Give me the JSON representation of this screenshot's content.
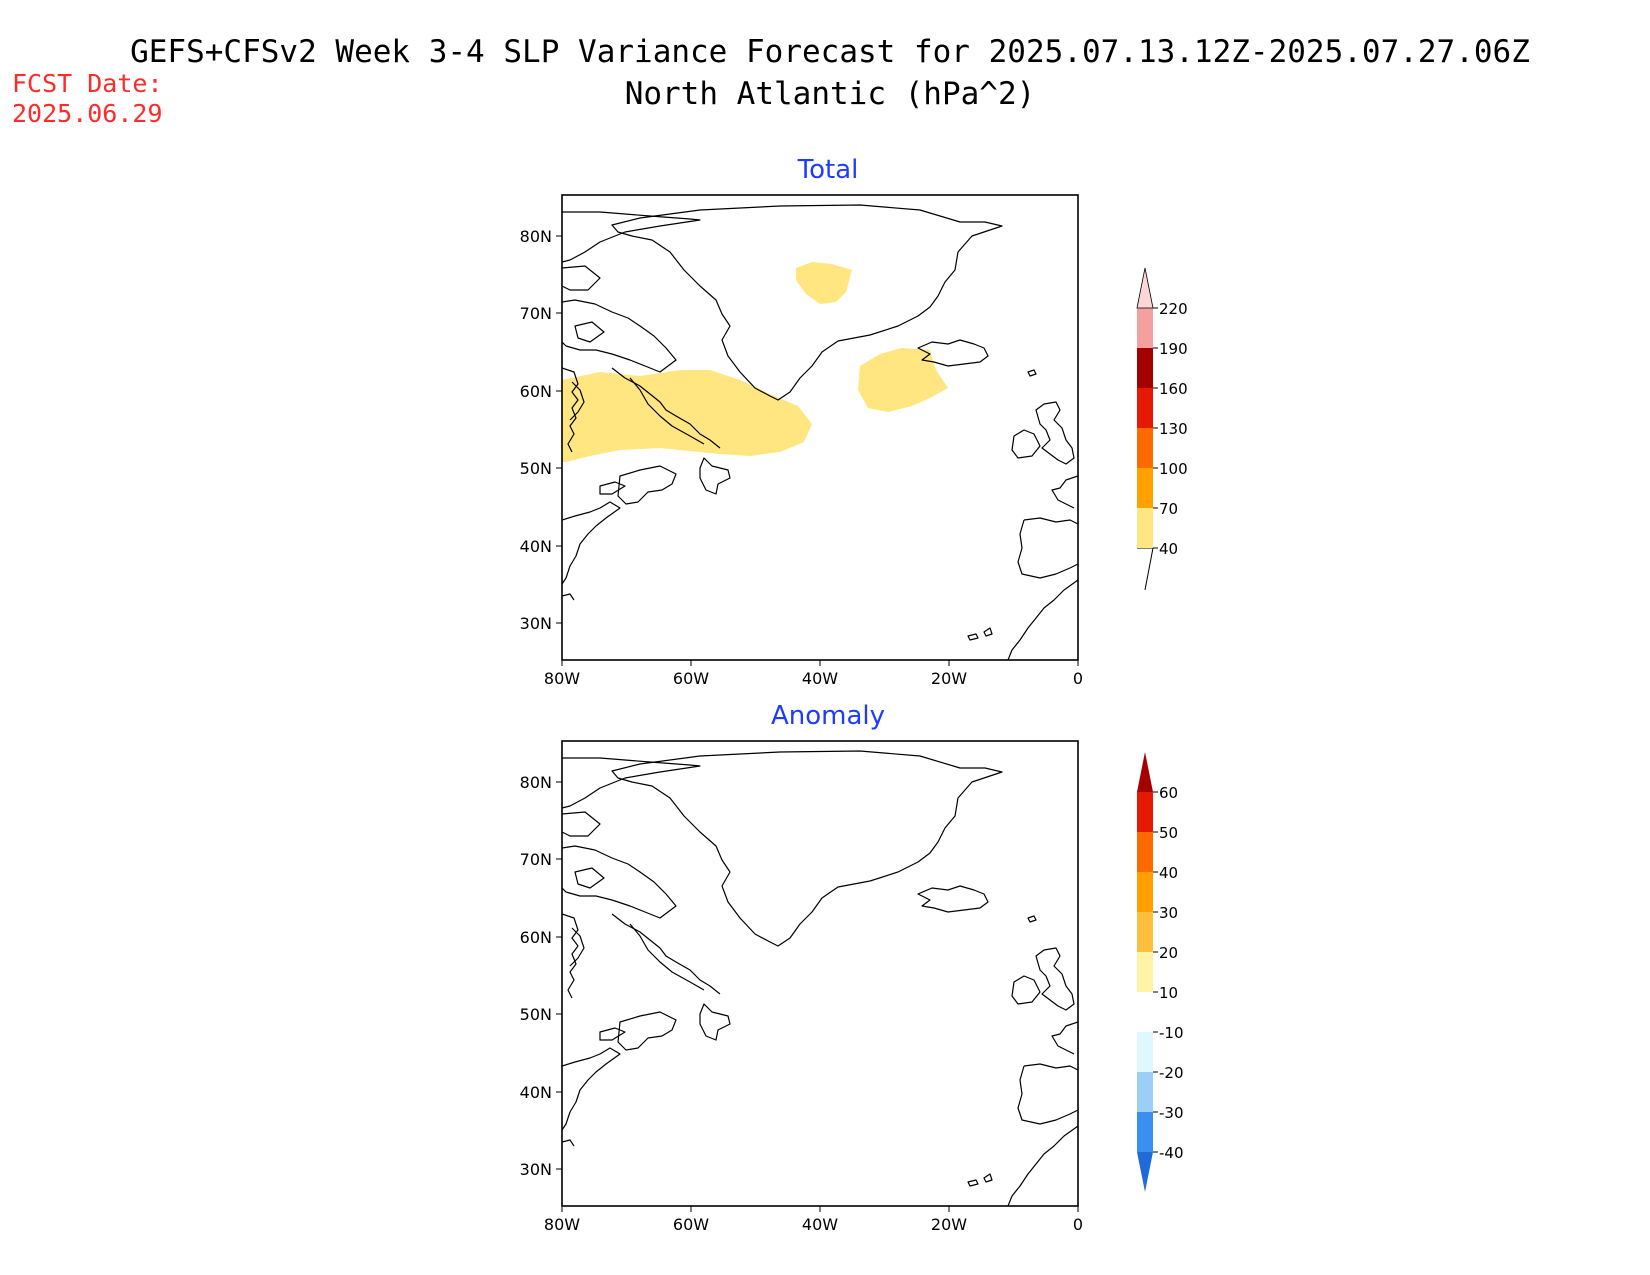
{
  "title_line1": "GEFS+CFSv2 Week 3-4 SLP Variance Forecast for 2025.07.13.12Z-2025.07.27.06Z",
  "title_line2": "North Atlantic (hPa^2)",
  "fcst_label": "FCST Date:",
  "fcst_date": "2025.06.29",
  "colors": {
    "fcst": "#ff2a2a",
    "panel_title": "#1e3cff",
    "shade_40": "#ffe680"
  },
  "lat_labels": [
    "80N",
    "70N",
    "60N",
    "50N",
    "40N",
    "30N"
  ],
  "lon_labels": [
    "80W",
    "60W",
    "40W",
    "20W",
    "0"
  ],
  "panels": [
    {
      "title": "Total",
      "colorbar": {
        "levels": [
          "40",
          "70",
          "100",
          "130",
          "160",
          "190",
          "220"
        ],
        "colors": [
          "#ffe680",
          "#ffa200",
          "#ff6a00",
          "#e61800",
          "#a50000",
          "#f4a09f",
          "#ffd6d6"
        ]
      }
    },
    {
      "title": "Anomaly",
      "colorbar": {
        "levels": [
          "-40",
          "-30",
          "-20",
          "-10",
          "10",
          "20",
          "30",
          "40",
          "50",
          "60"
        ],
        "colors": [
          "#1f6bd9",
          "#3a8ff0",
          "#9ccff7",
          "#dff7ff",
          "#ffffff",
          "#fff4a6",
          "#ffbf3c",
          "#ffa000",
          "#ff6a00",
          "#e61800",
          "#a50000"
        ]
      }
    }
  ]
}
